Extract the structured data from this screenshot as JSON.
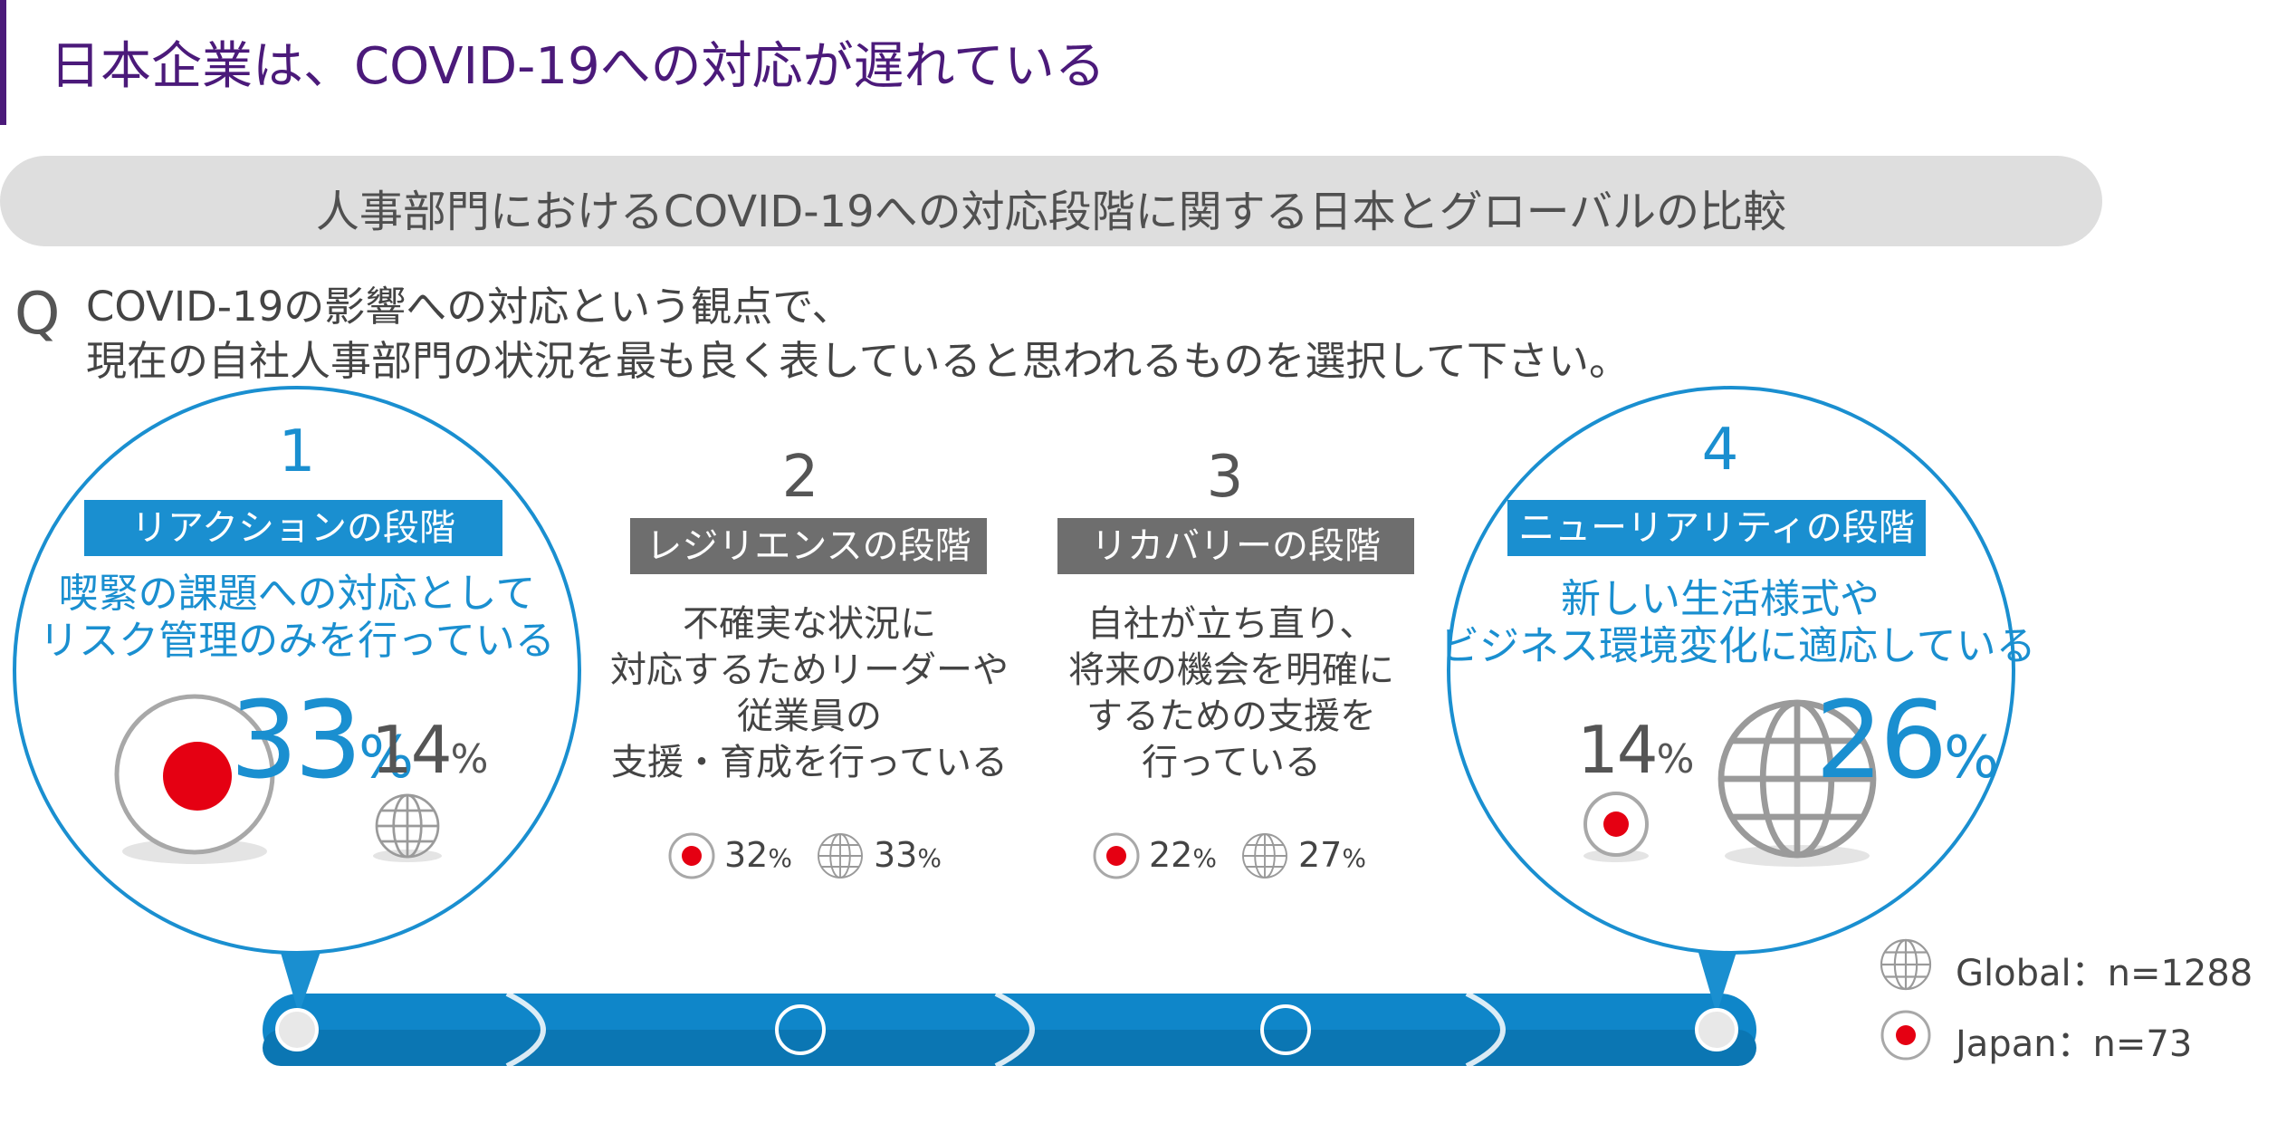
{
  "header": {
    "title": "日本企業は、COVID-19への対応が遅れている",
    "subtitle": "人事部門におけるCOVID-19への対応段階に関する日本とグローバルの比較"
  },
  "question": {
    "mark": "Q",
    "line1": "COVID-19の影響への対応という観点で、",
    "line2": "現在の自社人事部門の状況を最も良く表していると思われるものを選択して下さい。"
  },
  "colors": {
    "accent_blue": "#1a8fd0",
    "title_purple": "#4b1a7a",
    "japan_red": "#e50012",
    "gray_label": "#6e6e6e",
    "band_gray": "#dedede"
  },
  "stages": [
    {
      "number": "1",
      "label": "リアクションの段階",
      "description": [
        "喫緊の課題への対応として",
        "リスク管理のみを行っている"
      ],
      "japan_pct": "33",
      "global_pct": "14",
      "pct_sign": "%"
    },
    {
      "number": "2",
      "label": "レジリエンスの段階",
      "description": [
        "不確実な状況に",
        "対応するためリーダーや",
        "従業員の",
        "支援・育成を行っている"
      ],
      "japan_pct": "32",
      "global_pct": "33",
      "pct_sign": "%"
    },
    {
      "number": "3",
      "label": "リカバリーの段階",
      "description": [
        "自社が立ち直り、",
        "将来の機会を明確に",
        "するための支援を",
        "行っている"
      ],
      "japan_pct": "22",
      "global_pct": "27",
      "pct_sign": "%"
    },
    {
      "number": "4",
      "label": "ニューリアリティの段階",
      "description": [
        "新しい生活様式や",
        "ビジネス環境変化に適応している"
      ],
      "japan_pct": "14",
      "global_pct": "26",
      "pct_sign": "%"
    }
  ],
  "legend": {
    "global": "Global：n=1288",
    "japan": "Japan：n=73"
  },
  "chart_data": {
    "type": "table",
    "title": "人事部門におけるCOVID-19への対応段階に関する日本とグローバルの比較",
    "categories": [
      "リアクションの段階",
      "レジリエンスの段階",
      "リカバリーの段階",
      "ニューリアリティの段階"
    ],
    "series": [
      {
        "name": "Japan：n=73",
        "values": [
          33,
          32,
          22,
          14
        ]
      },
      {
        "name": "Global：n=1288",
        "values": [
          14,
          33,
          27,
          26
        ]
      }
    ],
    "unit": "%"
  }
}
